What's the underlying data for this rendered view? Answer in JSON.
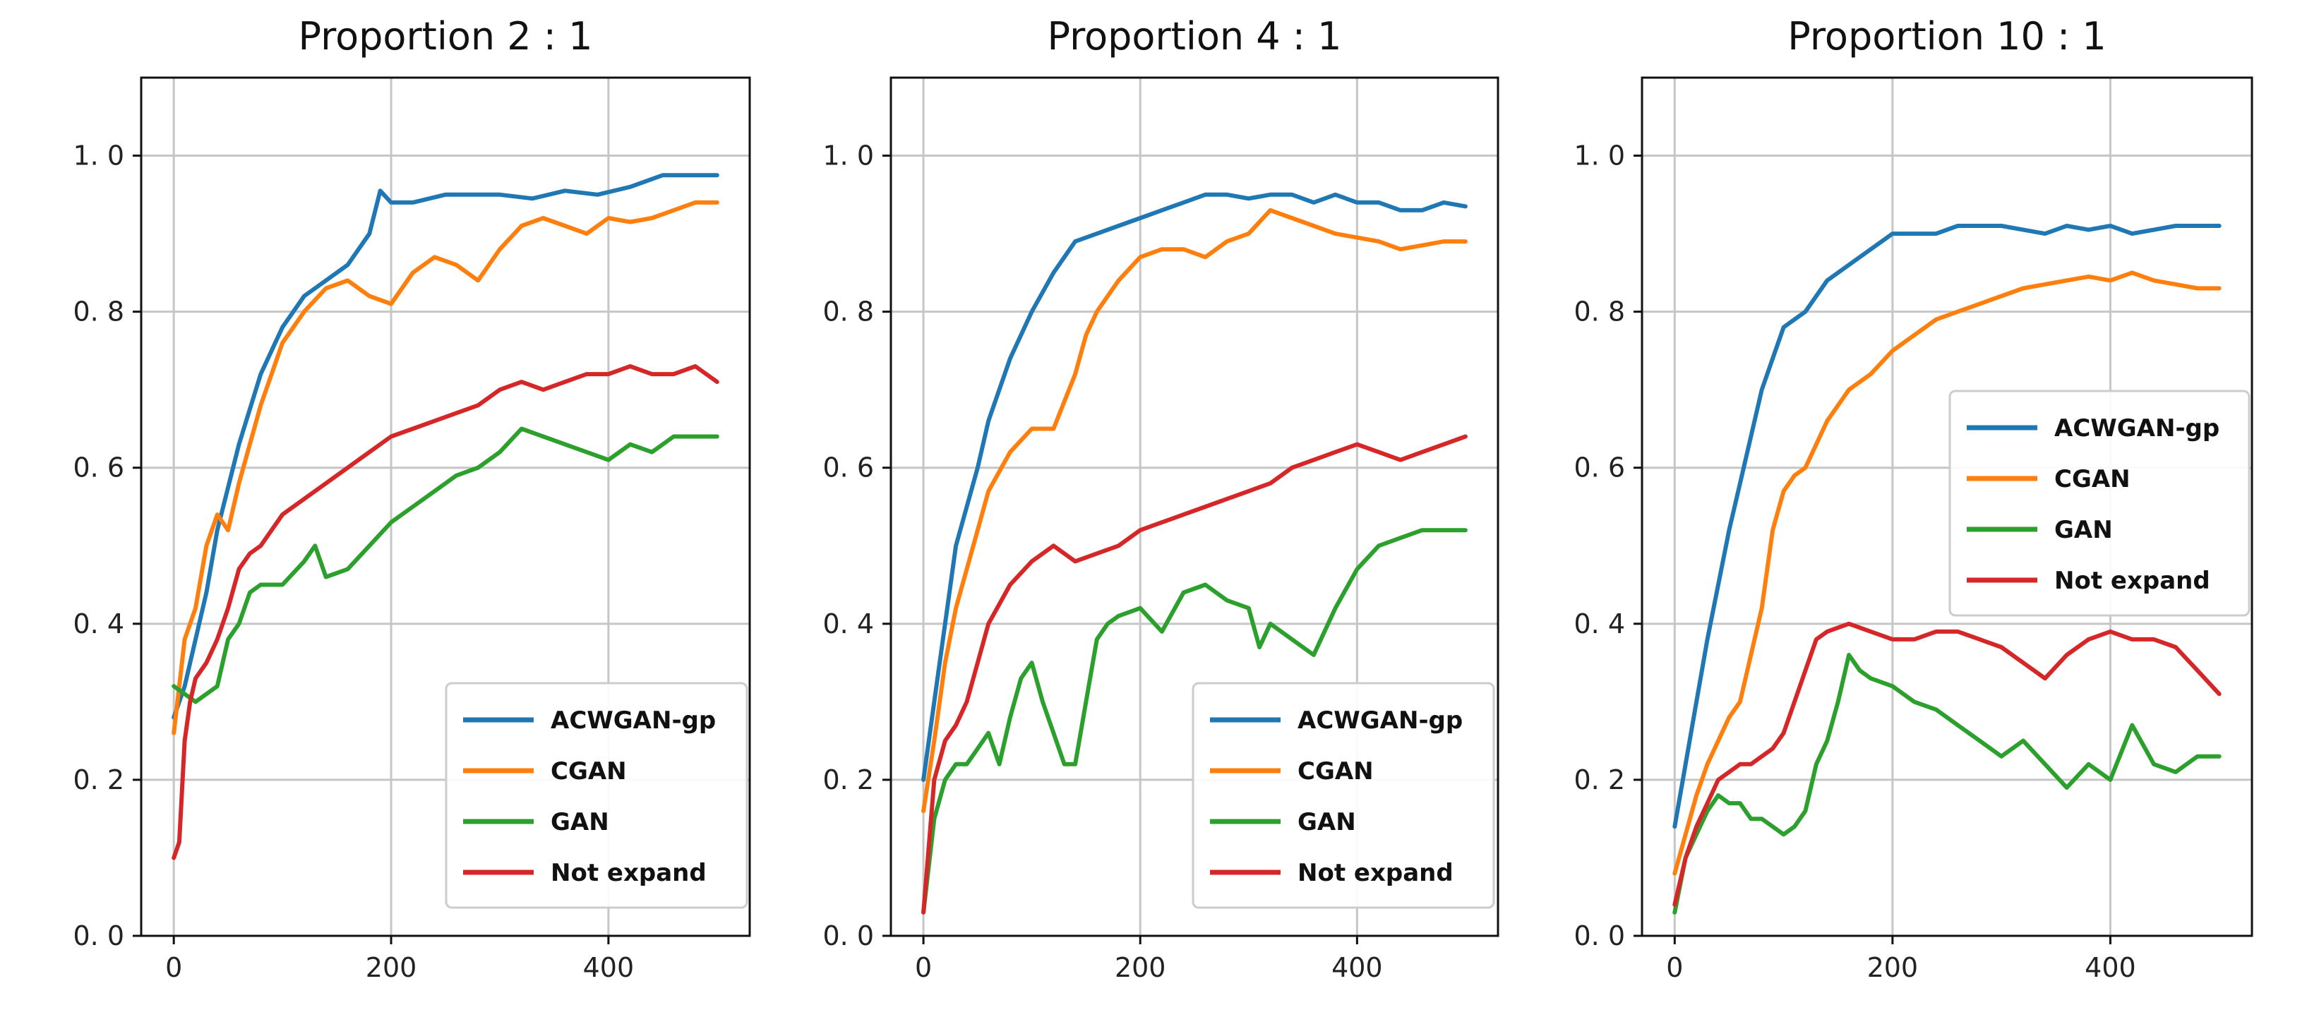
{
  "chart_data": [
    {
      "type": "line",
      "title": "Proportion 2 : 1",
      "xlim": [
        -30,
        530
      ],
      "ylim": [
        0.0,
        1.1
      ],
      "xticks": [
        0,
        200,
        400
      ],
      "xtick_labels": [
        "0",
        "200",
        "400"
      ],
      "yticks": [
        0.0,
        0.2,
        0.4,
        0.6,
        0.8,
        1.0
      ],
      "ytick_labels": [
        "0. 0",
        "0. 2",
        "0. 4",
        "0. 6",
        "0. 8",
        "1. 0"
      ],
      "grid": true,
      "legend_position": "lower-right",
      "series": [
        {
          "name": "ACWGAN-gp",
          "color": "#1f77b4",
          "x": [
            0,
            10,
            20,
            30,
            40,
            60,
            80,
            100,
            120,
            140,
            160,
            180,
            190,
            200,
            220,
            250,
            280,
            300,
            330,
            360,
            390,
            420,
            450,
            480,
            500
          ],
          "y": [
            0.28,
            0.32,
            0.38,
            0.44,
            0.52,
            0.63,
            0.72,
            0.78,
            0.82,
            0.84,
            0.86,
            0.9,
            0.955,
            0.94,
            0.94,
            0.95,
            0.95,
            0.95,
            0.945,
            0.955,
            0.95,
            0.96,
            0.975,
            0.975,
            0.975
          ]
        },
        {
          "name": "CGAN",
          "color": "#ff7f0e",
          "x": [
            0,
            10,
            20,
            30,
            40,
            50,
            60,
            80,
            100,
            120,
            140,
            160,
            180,
            200,
            220,
            240,
            260,
            280,
            300,
            320,
            340,
            360,
            380,
            400,
            420,
            440,
            460,
            480,
            500
          ],
          "y": [
            0.26,
            0.38,
            0.42,
            0.5,
            0.54,
            0.52,
            0.58,
            0.68,
            0.76,
            0.8,
            0.83,
            0.84,
            0.82,
            0.81,
            0.85,
            0.87,
            0.86,
            0.84,
            0.88,
            0.91,
            0.92,
            0.91,
            0.9,
            0.92,
            0.915,
            0.92,
            0.93,
            0.94,
            0.94
          ]
        },
        {
          "name": "GAN",
          "color": "#2ca02c",
          "x": [
            0,
            10,
            20,
            30,
            40,
            50,
            60,
            70,
            80,
            100,
            120,
            130,
            140,
            160,
            180,
            200,
            220,
            240,
            260,
            280,
            300,
            320,
            340,
            360,
            380,
            400,
            420,
            440,
            460,
            480,
            500
          ],
          "y": [
            0.32,
            0.31,
            0.3,
            0.31,
            0.32,
            0.38,
            0.4,
            0.44,
            0.45,
            0.45,
            0.48,
            0.5,
            0.46,
            0.47,
            0.5,
            0.53,
            0.55,
            0.57,
            0.59,
            0.6,
            0.62,
            0.65,
            0.64,
            0.63,
            0.62,
            0.61,
            0.63,
            0.62,
            0.64,
            0.64,
            0.64
          ]
        },
        {
          "name": "Not expand",
          "color": "#d62728",
          "x": [
            0,
            5,
            10,
            15,
            20,
            30,
            40,
            50,
            60,
            70,
            80,
            100,
            120,
            140,
            160,
            180,
            200,
            220,
            240,
            260,
            280,
            300,
            320,
            340,
            360,
            380,
            400,
            420,
            440,
            460,
            480,
            500
          ],
          "y": [
            0.1,
            0.12,
            0.25,
            0.3,
            0.33,
            0.35,
            0.38,
            0.42,
            0.47,
            0.49,
            0.5,
            0.54,
            0.56,
            0.58,
            0.6,
            0.62,
            0.64,
            0.65,
            0.66,
            0.67,
            0.68,
            0.7,
            0.71,
            0.7,
            0.71,
            0.72,
            0.72,
            0.73,
            0.72,
            0.72,
            0.73,
            0.71
          ]
        }
      ]
    },
    {
      "type": "line",
      "title": "Proportion 4 : 1",
      "xlim": [
        -30,
        530
      ],
      "ylim": [
        0.0,
        1.1
      ],
      "xticks": [
        0,
        200,
        400
      ],
      "xtick_labels": [
        "0",
        "200",
        "400"
      ],
      "yticks": [
        0.0,
        0.2,
        0.4,
        0.6,
        0.8,
        1.0
      ],
      "ytick_labels": [
        "0. 0",
        "0. 2",
        "0. 4",
        "0. 6",
        "0. 8",
        "1. 0"
      ],
      "grid": true,
      "legend_position": "lower-right",
      "series": [
        {
          "name": "ACWGAN-gp",
          "color": "#1f77b4",
          "x": [
            0,
            10,
            20,
            30,
            40,
            50,
            60,
            80,
            100,
            120,
            140,
            160,
            180,
            200,
            220,
            240,
            260,
            280,
            300,
            320,
            340,
            360,
            380,
            400,
            420,
            440,
            460,
            480,
            500
          ],
          "y": [
            0.2,
            0.3,
            0.4,
            0.5,
            0.55,
            0.6,
            0.66,
            0.74,
            0.8,
            0.85,
            0.89,
            0.9,
            0.91,
            0.92,
            0.93,
            0.94,
            0.95,
            0.95,
            0.945,
            0.95,
            0.95,
            0.94,
            0.95,
            0.94,
            0.94,
            0.93,
            0.93,
            0.94,
            0.935
          ]
        },
        {
          "name": "CGAN",
          "color": "#ff7f0e",
          "x": [
            0,
            10,
            20,
            30,
            40,
            50,
            60,
            80,
            100,
            120,
            140,
            150,
            160,
            180,
            200,
            220,
            240,
            260,
            280,
            300,
            320,
            340,
            360,
            380,
            400,
            420,
            440,
            460,
            480,
            500
          ],
          "y": [
            0.16,
            0.25,
            0.35,
            0.42,
            0.47,
            0.52,
            0.57,
            0.62,
            0.65,
            0.65,
            0.72,
            0.77,
            0.8,
            0.84,
            0.87,
            0.88,
            0.88,
            0.87,
            0.89,
            0.9,
            0.93,
            0.92,
            0.91,
            0.9,
            0.895,
            0.89,
            0.88,
            0.885,
            0.89,
            0.89
          ]
        },
        {
          "name": "GAN",
          "color": "#2ca02c",
          "x": [
            0,
            10,
            20,
            30,
            40,
            50,
            60,
            70,
            80,
            90,
            100,
            110,
            120,
            130,
            140,
            150,
            160,
            170,
            180,
            200,
            220,
            240,
            260,
            280,
            300,
            310,
            320,
            340,
            360,
            380,
            400,
            420,
            440,
            460,
            480,
            500
          ],
          "y": [
            0.03,
            0.15,
            0.2,
            0.22,
            0.22,
            0.24,
            0.26,
            0.22,
            0.28,
            0.33,
            0.35,
            0.3,
            0.26,
            0.22,
            0.22,
            0.3,
            0.38,
            0.4,
            0.41,
            0.42,
            0.39,
            0.44,
            0.45,
            0.43,
            0.42,
            0.37,
            0.4,
            0.38,
            0.36,
            0.42,
            0.47,
            0.5,
            0.51,
            0.52,
            0.52,
            0.52
          ]
        },
        {
          "name": "Not expand",
          "color": "#d62728",
          "x": [
            0,
            10,
            20,
            30,
            40,
            50,
            60,
            80,
            100,
            120,
            140,
            160,
            180,
            200,
            220,
            240,
            260,
            280,
            300,
            320,
            340,
            360,
            380,
            400,
            420,
            440,
            460,
            480,
            500
          ],
          "y": [
            0.03,
            0.2,
            0.25,
            0.27,
            0.3,
            0.35,
            0.4,
            0.45,
            0.48,
            0.5,
            0.48,
            0.49,
            0.5,
            0.52,
            0.53,
            0.54,
            0.55,
            0.56,
            0.57,
            0.58,
            0.6,
            0.61,
            0.62,
            0.63,
            0.62,
            0.61,
            0.62,
            0.63,
            0.64
          ]
        }
      ]
    },
    {
      "type": "line",
      "title": "Proportion 10 : 1",
      "xlim": [
        -30,
        530
      ],
      "ylim": [
        0.0,
        1.1
      ],
      "xticks": [
        0,
        200,
        400
      ],
      "xtick_labels": [
        "0",
        "200",
        "400"
      ],
      "yticks": [
        0.0,
        0.2,
        0.4,
        0.6,
        0.8,
        1.0
      ],
      "ytick_labels": [
        "0. 0",
        "0. 2",
        "0. 4",
        "0. 6",
        "0. 8",
        "1. 0"
      ],
      "grid": true,
      "legend_position": "center-right",
      "series": [
        {
          "name": "ACWGAN-gp",
          "color": "#1f77b4",
          "x": [
            0,
            10,
            20,
            30,
            40,
            50,
            60,
            70,
            80,
            90,
            100,
            120,
            140,
            160,
            180,
            200,
            220,
            240,
            260,
            280,
            300,
            320,
            340,
            360,
            380,
            400,
            420,
            440,
            460,
            480,
            500
          ],
          "y": [
            0.14,
            0.22,
            0.3,
            0.38,
            0.45,
            0.52,
            0.58,
            0.64,
            0.7,
            0.74,
            0.78,
            0.8,
            0.84,
            0.86,
            0.88,
            0.9,
            0.9,
            0.9,
            0.91,
            0.91,
            0.91,
            0.905,
            0.9,
            0.91,
            0.905,
            0.91,
            0.9,
            0.905,
            0.91,
            0.91,
            0.91
          ]
        },
        {
          "name": "CGAN",
          "color": "#ff7f0e",
          "x": [
            0,
            10,
            20,
            30,
            40,
            50,
            60,
            70,
            80,
            90,
            100,
            110,
            120,
            140,
            160,
            180,
            200,
            220,
            240,
            260,
            280,
            300,
            320,
            340,
            360,
            380,
            400,
            420,
            440,
            460,
            480,
            500
          ],
          "y": [
            0.08,
            0.13,
            0.18,
            0.22,
            0.25,
            0.28,
            0.3,
            0.36,
            0.42,
            0.52,
            0.57,
            0.59,
            0.6,
            0.66,
            0.7,
            0.72,
            0.75,
            0.77,
            0.79,
            0.8,
            0.81,
            0.82,
            0.83,
            0.835,
            0.84,
            0.845,
            0.84,
            0.85,
            0.84,
            0.835,
            0.83,
            0.83
          ]
        },
        {
          "name": "GAN",
          "color": "#2ca02c",
          "x": [
            0,
            10,
            20,
            30,
            40,
            50,
            60,
            70,
            80,
            90,
            100,
            110,
            120,
            130,
            140,
            150,
            160,
            170,
            180,
            200,
            220,
            240,
            260,
            280,
            300,
            320,
            340,
            360,
            380,
            400,
            420,
            440,
            460,
            480,
            500
          ],
          "y": [
            0.03,
            0.1,
            0.13,
            0.16,
            0.18,
            0.17,
            0.17,
            0.15,
            0.15,
            0.14,
            0.13,
            0.14,
            0.16,
            0.22,
            0.25,
            0.3,
            0.36,
            0.34,
            0.33,
            0.32,
            0.3,
            0.29,
            0.27,
            0.25,
            0.23,
            0.25,
            0.22,
            0.19,
            0.22,
            0.2,
            0.27,
            0.22,
            0.21,
            0.23,
            0.23
          ]
        },
        {
          "name": "Not expand",
          "color": "#d62728",
          "x": [
            0,
            10,
            20,
            30,
            40,
            50,
            60,
            70,
            80,
            90,
            100,
            110,
            120,
            130,
            140,
            160,
            180,
            200,
            220,
            240,
            260,
            280,
            300,
            320,
            340,
            360,
            380,
            400,
            420,
            440,
            460,
            480,
            500
          ],
          "y": [
            0.04,
            0.1,
            0.14,
            0.17,
            0.2,
            0.21,
            0.22,
            0.22,
            0.23,
            0.24,
            0.26,
            0.3,
            0.34,
            0.38,
            0.39,
            0.4,
            0.39,
            0.38,
            0.38,
            0.39,
            0.39,
            0.38,
            0.37,
            0.35,
            0.33,
            0.36,
            0.38,
            0.39,
            0.38,
            0.38,
            0.37,
            0.34,
            0.31
          ]
        }
      ]
    }
  ]
}
